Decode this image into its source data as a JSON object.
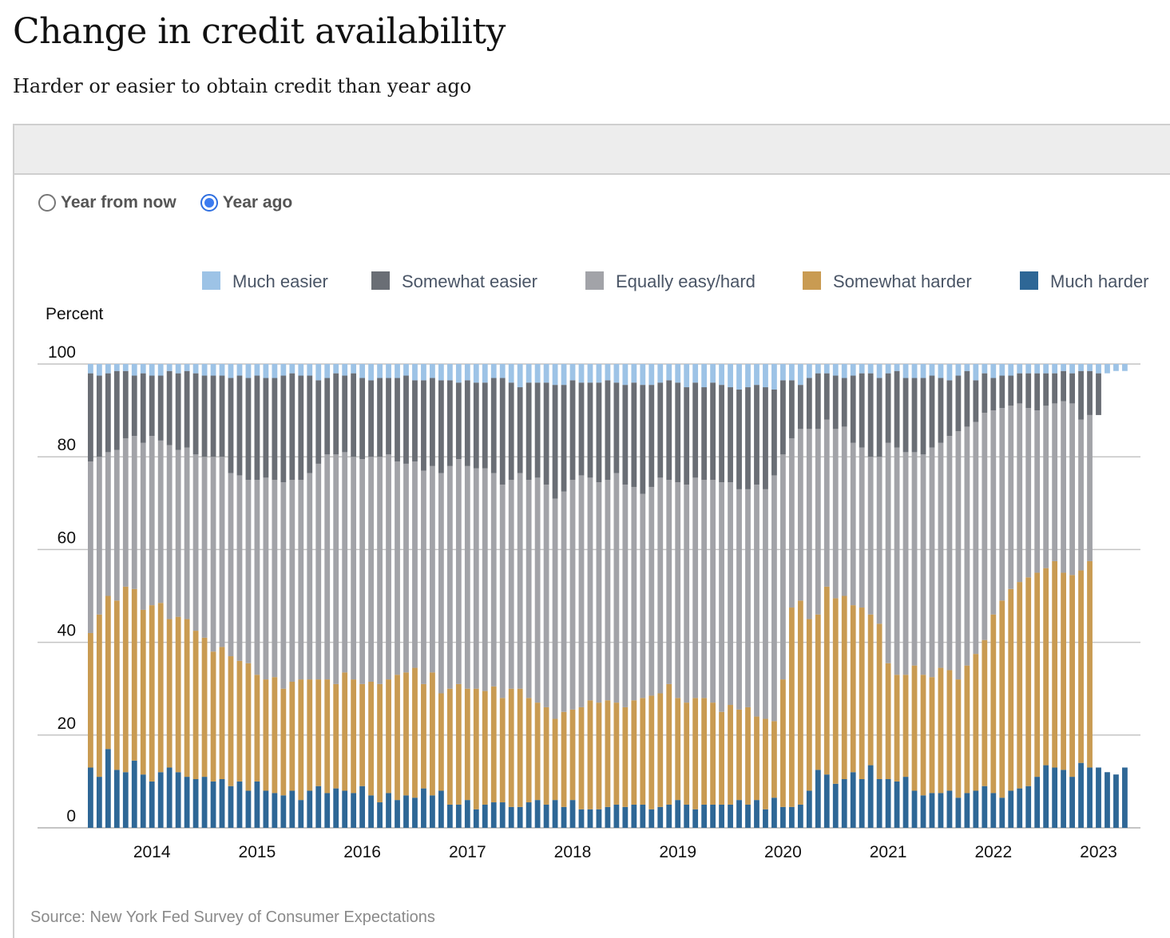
{
  "header": {
    "title": "Change in credit availability",
    "subtitle": "Harder or easier to obtain credit than year ago"
  },
  "controls": {
    "radio_options": [
      {
        "label": "Year from now",
        "checked": false
      },
      {
        "label": "Year ago",
        "checked": true
      }
    ]
  },
  "source": "Source: New York Fed Survey of Consumer Expectations",
  "chart_data": {
    "type": "bar",
    "stacked": true,
    "title": "Change in credit availability",
    "subtitle": "Harder or easier to obtain credit than year ago",
    "ylabel": "Percent",
    "xlabel": "",
    "ylim": [
      0,
      100
    ],
    "yticks": [
      0,
      20,
      40,
      60,
      80,
      100
    ],
    "grid": true,
    "legend_position": "top",
    "x_tick_labels": [
      "2014",
      "2015",
      "2016",
      "2017",
      "2018",
      "2019",
      "2020",
      "2021",
      "2022",
      "2023"
    ],
    "x_tick_bar_index": [
      7,
      19,
      31,
      43,
      55,
      67,
      79,
      91,
      103,
      115
    ],
    "colors": {
      "much_easier": "#9dc3e6",
      "somewhat_easier": "#6a6e75",
      "equally": "#a2a3a8",
      "somewhat_harder": "#c99b52",
      "much_harder": "#2e6796"
    },
    "legend": [
      "Much easier",
      "Somewhat easier",
      "Equally easy/hard",
      "Somewhat harder",
      "Much harder"
    ],
    "cumulative_note": "Values are cumulative stack tops for each band (percent); much easier fills to ~100.",
    "stack_tops": {
      "much_harder": [
        13,
        11,
        17,
        12.5,
        12,
        14.5,
        11.5,
        10,
        12,
        13,
        12,
        11,
        10.5,
        11,
        10,
        10.5,
        9,
        10,
        8,
        10,
        8,
        7.5,
        7,
        8,
        6,
        8,
        9,
        7.5,
        8.5,
        8,
        7.5,
        9,
        7,
        5.5,
        7.5,
        6,
        7,
        6.5,
        8.5,
        7,
        8,
        5,
        5,
        6,
        4,
        5,
        5.5,
        5.5,
        4.5,
        4.5,
        5.5,
        6,
        5,
        6,
        4.5,
        6,
        4,
        4,
        4,
        4.5,
        5,
        4.5,
        5,
        5,
        4,
        4.5,
        5,
        6,
        5,
        4,
        5,
        5,
        5,
        5,
        6,
        5,
        6,
        4,
        6.5,
        4.5,
        4.5,
        5,
        8,
        12.5,
        11.5,
        9.5,
        10.5,
        12,
        10.5,
        13.5,
        10.5,
        10.5,
        10,
        11,
        8,
        7,
        7.5,
        7.5,
        8,
        6.5,
        7.5,
        8,
        9,
        7.5,
        6.5,
        8,
        8.5,
        9,
        11,
        13.5,
        13,
        12.5,
        11,
        14,
        13,
        13,
        12,
        11.5,
        13
      ],
      "somewhat_harder": [
        42,
        46,
        50,
        49,
        52,
        51.5,
        47,
        48,
        48.5,
        45,
        45.5,
        45,
        42.5,
        41,
        38,
        39,
        37,
        36,
        35.5,
        33,
        32,
        32.5,
        30,
        31.5,
        32,
        32,
        32,
        32,
        31,
        33.5,
        32,
        31,
        31.5,
        31,
        32,
        33,
        33.5,
        34.5,
        31,
        33.5,
        29,
        30,
        31,
        30,
        30,
        29.5,
        30.5,
        28,
        30,
        30,
        28,
        27,
        26,
        23.5,
        25,
        25.5,
        26,
        27.5,
        27,
        27.5,
        27,
        26,
        27.5,
        28,
        28.5,
        29,
        31,
        28,
        27,
        28,
        28,
        27,
        25,
        26.5,
        25.5,
        26,
        24,
        23.5,
        23,
        32,
        47.5,
        49,
        45,
        46,
        52,
        49.5,
        50,
        48,
        47.5,
        46,
        44,
        35.5,
        33,
        33,
        35,
        33,
        32.5,
        34.5,
        34,
        32,
        35,
        37.5,
        40.5,
        46,
        49,
        51.5,
        53,
        54,
        55,
        56,
        57.5,
        55,
        54.5,
        55.5,
        57.5
      ],
      "equally": [
        79,
        80,
        81,
        81.5,
        84,
        84.5,
        83,
        84.5,
        83.5,
        82.5,
        81.5,
        82,
        80.5,
        80,
        80,
        80,
        76.5,
        76,
        75,
        75,
        75.5,
        75,
        74.5,
        75,
        75,
        76.5,
        78.5,
        80.5,
        80.5,
        81,
        80,
        79.5,
        80,
        80,
        80.5,
        79,
        78.5,
        79,
        77,
        78,
        76.5,
        78,
        79.5,
        78,
        77.5,
        77.5,
        76.5,
        74,
        75,
        76.5,
        75,
        75.5,
        74,
        71,
        72.5,
        75,
        76,
        75.5,
        74.5,
        75,
        76.5,
        74,
        73.5,
        72,
        73.5,
        75.5,
        75,
        74.5,
        74,
        75.5,
        75,
        75,
        74.5,
        74.5,
        73,
        73,
        74,
        73,
        76,
        80.5,
        84,
        86,
        86,
        86,
        88,
        86,
        86.5,
        83,
        82,
        80,
        80,
        83,
        82,
        81,
        81,
        80.5,
        82,
        83,
        84.5,
        85.5,
        86.5,
        87.5,
        89.5,
        90,
        90.5,
        91,
        91.5,
        90.5,
        90,
        91,
        91.5,
        92,
        91.5,
        88,
        89,
        89
      ],
      "somewhat_easier": [
        98,
        97.5,
        98,
        98.5,
        98.5,
        97.5,
        98,
        97.5,
        97.5,
        98.5,
        98,
        98.5,
        98,
        97.5,
        97.5,
        97.5,
        97,
        97.5,
        97,
        97.5,
        97,
        97,
        97.5,
        98,
        97.5,
        97.5,
        96.5,
        97,
        98,
        97.5,
        98,
        97,
        96.5,
        97,
        97,
        97,
        97.5,
        96.5,
        96.5,
        97,
        96.5,
        96.5,
        96,
        96.5,
        96,
        96,
        97,
        97,
        96,
        95,
        96,
        96,
        96,
        95.5,
        95.5,
        96.5,
        96,
        96,
        96,
        96.5,
        96,
        95.5,
        96,
        95.5,
        95.5,
        96,
        96.5,
        96,
        95,
        96,
        95,
        96,
        95.5,
        95,
        94.5,
        95,
        95.5,
        95,
        94.5,
        96.5,
        96.5,
        95.5,
        97,
        98,
        98,
        97.5,
        97,
        97.5,
        98,
        98,
        97,
        98,
        98.5,
        97,
        97,
        97,
        97.5,
        97,
        96.5,
        97.5,
        98.5,
        96.5,
        98,
        97,
        97.5,
        97.5,
        98,
        98,
        98,
        98,
        98,
        98.5,
        98,
        98.5,
        98.5,
        98,
        98,
        98.5,
        98.5
      ]
    }
  }
}
